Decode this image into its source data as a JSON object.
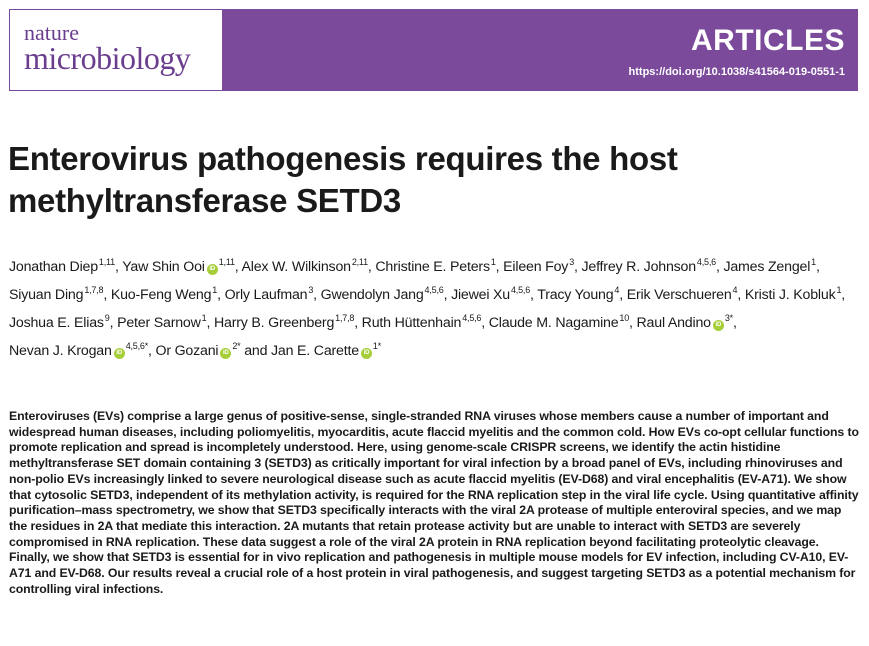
{
  "header": {
    "journal_top": "nature",
    "journal_bottom": "microbiology",
    "section": "ARTICLES",
    "doi": "https://doi.org/10.1038/s41564-019-0551-1",
    "brand_color": "#7b4a9b"
  },
  "title": "Enterovirus pathogenesis requires the host methyltransferase SETD3",
  "authors": [
    {
      "name": "Jonathan Diep",
      "aff": "1,11",
      "orcid": false,
      "sep": ", "
    },
    {
      "name": "Yaw Shin Ooi",
      "aff": "1,11",
      "orcid": true,
      "sep": ", "
    },
    {
      "name": "Alex W. Wilkinson",
      "aff": "2,11",
      "orcid": false,
      "sep": ", "
    },
    {
      "name": "Christine E. Peters",
      "aff": "1",
      "orcid": false,
      "sep": ", "
    },
    {
      "name": "Eileen Foy",
      "aff": "3",
      "orcid": false,
      "sep": ", "
    },
    {
      "name": "Jeffrey R. Johnson",
      "aff": "4,5,6",
      "orcid": false,
      "sep": ", "
    },
    {
      "name": "James Zengel",
      "aff": "1",
      "orcid": false,
      "sep": ", "
    },
    {
      "name": "Siyuan Ding",
      "aff": "1,7,8",
      "orcid": false,
      "sep": ", "
    },
    {
      "name": "Kuo-Feng Weng",
      "aff": "1",
      "orcid": false,
      "sep": ", "
    },
    {
      "name": "Orly Laufman",
      "aff": "3",
      "orcid": false,
      "sep": ", "
    },
    {
      "name": "Gwendolyn Jang",
      "aff": "4,5,6",
      "orcid": false,
      "sep": ", "
    },
    {
      "name": "Jiewei Xu",
      "aff": "4,5,6",
      "orcid": false,
      "sep": ", "
    },
    {
      "name": "Tracy Young",
      "aff": "4",
      "orcid": false,
      "sep": ", "
    },
    {
      "name": "Erik Verschueren",
      "aff": "4",
      "orcid": false,
      "sep": ", "
    },
    {
      "name": "Kristi J. Kobluk",
      "aff": "1",
      "orcid": false,
      "sep": ", "
    },
    {
      "name": "Joshua E. Elias",
      "aff": "9",
      "orcid": false,
      "sep": ", "
    },
    {
      "name": "Peter Sarnow",
      "aff": "1",
      "orcid": false,
      "sep": ", "
    },
    {
      "name": "Harry B. Greenberg",
      "aff": "1,7,8",
      "orcid": false,
      "sep": ", "
    },
    {
      "name": "Ruth Hüttenhain",
      "aff": "4,5,6",
      "orcid": false,
      "sep": ", "
    },
    {
      "name": "Claude M. Nagamine",
      "aff": "10",
      "orcid": false,
      "sep": ", "
    },
    {
      "name": "Raul Andino",
      "aff": "3*",
      "orcid": true,
      "sep": ", "
    },
    {
      "name": "Nevan J. Krogan",
      "aff": "4,5,6*",
      "orcid": true,
      "sep": ", "
    },
    {
      "name": "Or Gozani",
      "aff": "2*",
      "orcid": true,
      "sep": " and "
    },
    {
      "name": "Jan E. Carette",
      "aff": "1*",
      "orcid": true,
      "sep": ""
    }
  ],
  "abstract": "Enteroviruses (EVs) comprise a large genus of positive-sense, single-stranded RNA viruses whose members cause a number of important and widespread human diseases, including poliomyelitis, myocarditis, acute flaccid myelitis and the common cold. How EVs co-opt cellular functions to promote replication and spread is incompletely understood. Here, using genome-scale CRISPR screens, we identify the actin histidine methyltransferase SET domain containing 3 (SETD3) as critically important for viral infection by a broad panel of EVs, including rhinoviruses and non-polio EVs increasingly linked to severe neurological disease such as acute flaccid myelitis (EV-D68) and viral encephalitis (EV-A71). We show that cytosolic SETD3, independent of its methylation activity, is required for the RNA replication step in the viral life cycle. Using quantitative affinity purification–mass spectrometry, we show that SETD3 specifically interacts with the viral 2A protease of multiple enteroviral species, and we map the residues in 2A that mediate this interaction. 2A mutants that retain protease activity but are unable to interact with SETD3 are severely compromised in RNA replication. These data suggest a role of the viral 2A protein in RNA replication beyond facilitating proteolytic cleavage. Finally, we show that SETD3 is essential for in vivo replication and pathogenesis in multiple mouse models for EV infection, including CV-A10, EV-A71 and EV-D68. Our results reveal a crucial role of a host protein in viral pathogenesis, and suggest targeting SETD3 as a potential mechanism for controlling viral infections."
}
